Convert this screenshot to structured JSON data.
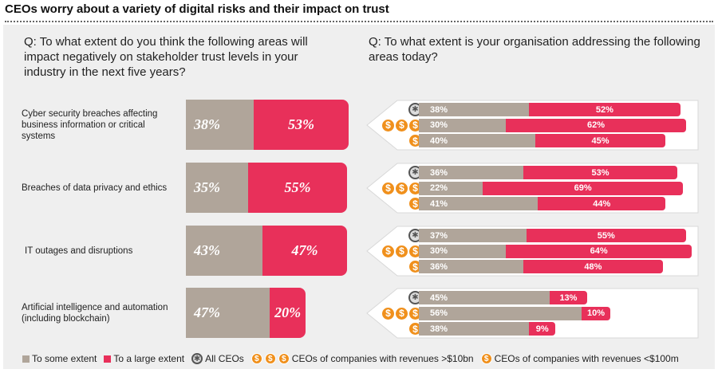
{
  "title": "CEOs worry about a variety of digital risks and their impact on trust",
  "chart_data": [
    {
      "type": "bar",
      "orientation": "horizontal",
      "stacked": true,
      "title": "Q: To what extent do you think the following areas will impact negatively on stakeholder trust levels in your industry in the next five years?",
      "categories": [
        "Cyber security breaches affecting business information or critical systems",
        "Breaches of data privacy and ethics",
        "IT outages and disruptions",
        "Artificial intelligence and automation (including blockchain)"
      ],
      "series": [
        {
          "name": "To some extent",
          "color": "#b0a59a",
          "values": [
            38,
            35,
            43,
            47
          ]
        },
        {
          "name": "To a large extent",
          "color": "#e8305a",
          "values": [
            53,
            55,
            47,
            20
          ]
        }
      ]
    },
    {
      "type": "bar",
      "orientation": "horizontal",
      "stacked": true,
      "title": "Q: To what extent is your organisation addressing the following areas today?",
      "groups": [
        "All CEOs",
        "CEOs of companies with revenues >$10bn",
        "CEOs of companies with revenues <$100m"
      ],
      "categories": [
        "Cyber security breaches affecting business information or critical systems",
        "Breaches of data privacy and ethics",
        "IT outages and disruptions",
        "Artificial intelligence and automation (including blockchain)"
      ],
      "series": [
        {
          "name": "To some extent",
          "color": "#b0a59a",
          "values": [
            [
              38,
              30,
              40
            ],
            [
              36,
              22,
              41
            ],
            [
              37,
              30,
              36
            ],
            [
              45,
              56,
              38
            ]
          ]
        },
        {
          "name": "To a large extent",
          "color": "#e8305a",
          "values": [
            [
              52,
              62,
              45
            ],
            [
              53,
              69,
              44
            ],
            [
              55,
              64,
              48
            ],
            [
              13,
              10,
              9
            ]
          ]
        }
      ]
    }
  ],
  "legend": [
    {
      "label": "To some extent",
      "icon": "grey-square"
    },
    {
      "label": "To a large extent",
      "icon": "red-square"
    },
    {
      "label": "All CEOs",
      "icon": "globe-icon"
    },
    {
      "label": "CEOs of companies with revenues >$10bn",
      "icon": "three-dollar-coins"
    },
    {
      "label": "CEOs of companies with revenues <$100m",
      "icon": "dollar-coin"
    }
  ],
  "coin_symbol": "$"
}
